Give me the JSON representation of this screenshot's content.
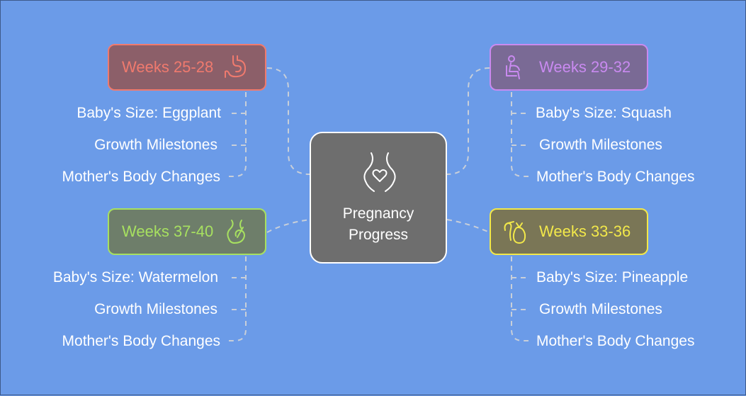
{
  "center": {
    "title": "Pregnancy\nProgress",
    "icon": "pregnant-belly-heart-icon"
  },
  "phases": [
    {
      "title": "Weeks 25-28",
      "icon": "stomach-icon",
      "border_color": "#f07a6e",
      "fill_color": "#8c5f69",
      "text_color": "#f07a6e",
      "items": [
        "Baby's Size: Eggplant",
        "Growth Milestones",
        "Mother's Body Changes"
      ]
    },
    {
      "title": "Weeks 29-32",
      "icon": "seated-person-icon",
      "border_color": "#c98af0",
      "fill_color": "#7a6a95",
      "text_color": "#c98af0",
      "items": [
        "Baby's Size: Squash",
        "Growth Milestones",
        "Mother's Body Changes"
      ]
    },
    {
      "title": "Weeks 37-40",
      "icon": "pregnant-woman-icon",
      "border_color": "#a7e060",
      "fill_color": "#6e7e6a",
      "text_color": "#a7e060",
      "items": [
        "Baby's Size: Watermelon",
        "Growth Milestones",
        "Mother's Body Changes"
      ]
    },
    {
      "title": "Weeks 33-36",
      "icon": "stork-bundle-icon",
      "border_color": "#f2e84a",
      "fill_color": "#7a7656",
      "text_color": "#f2e84a",
      "items": [
        "Baby's Size: Pineapple",
        "Growth Milestones",
        "Mother's Body Changes"
      ]
    }
  ]
}
